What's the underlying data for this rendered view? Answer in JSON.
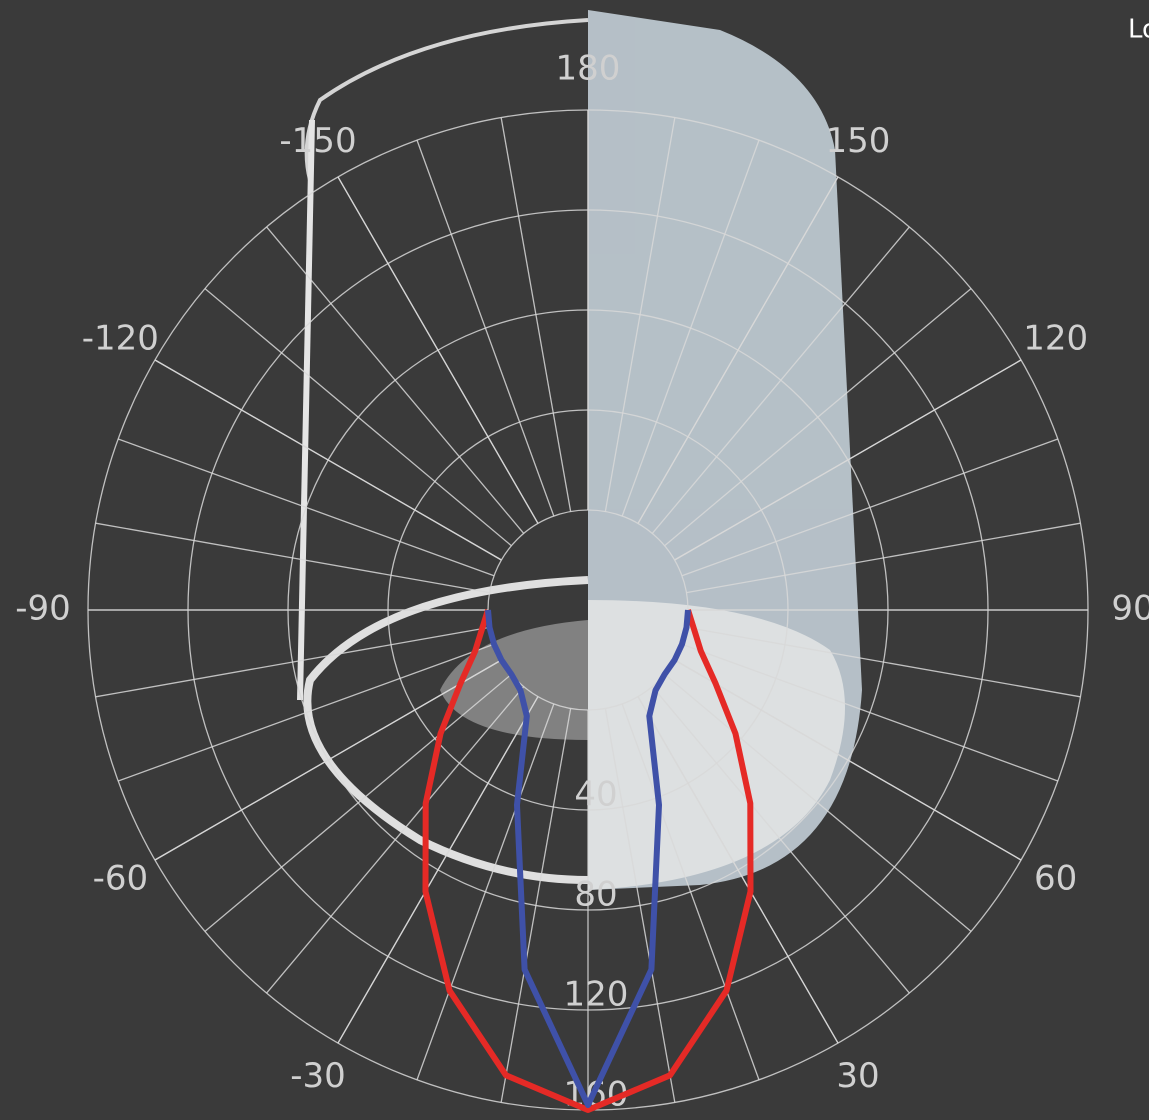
{
  "chart_data": {
    "type": "polar",
    "x": [
      -90,
      -80,
      -70,
      -60,
      -50,
      -40,
      -30,
      -20,
      -10,
      0,
      10,
      20,
      30,
      40,
      50,
      60,
      70,
      80,
      90
    ],
    "series": [
      {
        "color": "#e52a26",
        "values": [
          0,
          3,
          8,
          19,
          37,
          61,
          90,
          122,
          149,
          160,
          149,
          122,
          90,
          61,
          37,
          19,
          8,
          3,
          0
        ]
      },
      {
        "color": "#3f51a8",
        "values": [
          0,
          0,
          0,
          0,
          0,
          2,
          9,
          43,
          106,
          158,
          106,
          43,
          9,
          2,
          0,
          0,
          0,
          0,
          0
        ]
      }
    ],
    "rlim": [
      0,
      160
    ],
    "rticks": [
      40,
      80,
      120,
      160
    ],
    "thetaticks": [
      -150,
      -120,
      -90,
      -60,
      -30,
      30,
      60,
      90,
      120,
      150,
      180
    ],
    "corner_text": "Lo",
    "grid": true
  }
}
